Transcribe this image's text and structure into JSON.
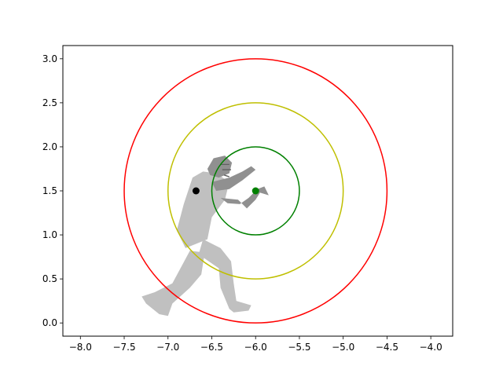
{
  "chart_data": {
    "type": "scatter",
    "title": "",
    "xlabel": "",
    "ylabel": "",
    "xlim": [
      -8.2,
      -3.75
    ],
    "ylim": [
      -0.15,
      3.15
    ],
    "xticks": [
      -8.0,
      -7.5,
      -7.0,
      -6.5,
      -6.0,
      -5.5,
      -5.0,
      -4.5,
      -4.0
    ],
    "xtick_labels": [
      "−8.0",
      "−7.5",
      "−7.0",
      "−6.5",
      "−6.0",
      "−5.5",
      "−5.0",
      "−4.5",
      "−4.0"
    ],
    "yticks": [
      0.0,
      0.5,
      1.0,
      1.5,
      2.0,
      2.5,
      3.0
    ],
    "ytick_labels": [
      "0.0",
      "0.5",
      "1.0",
      "1.5",
      "2.0",
      "2.5",
      "3.0"
    ],
    "grid": false,
    "circles": [
      {
        "cx": -6.0,
        "cy": 1.5,
        "r": 0.5,
        "color": "#008000"
      },
      {
        "cx": -6.0,
        "cy": 1.5,
        "r": 1.0,
        "color": "#bfbf00"
      },
      {
        "cx": -6.0,
        "cy": 1.5,
        "r": 1.5,
        "color": "#ff0000"
      }
    ],
    "points": [
      {
        "x": -6.68,
        "y": 1.5,
        "color": "#000000"
      },
      {
        "x": -6.0,
        "y": 1.5,
        "color": "#008000"
      }
    ],
    "background_image": "football-player-silhouette"
  }
}
